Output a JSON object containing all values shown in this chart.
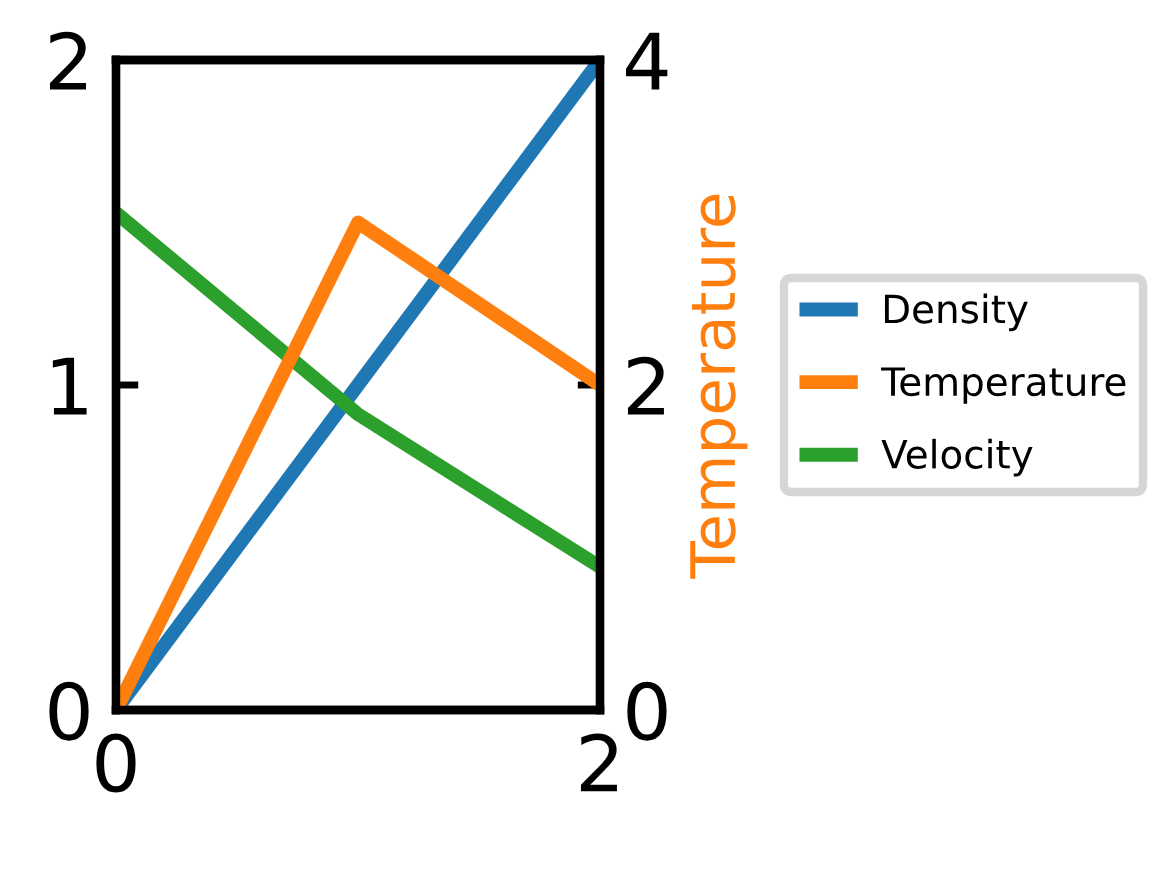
{
  "chart_data": {
    "type": "line",
    "x": [
      0,
      1,
      2
    ],
    "xlim": [
      0,
      2
    ],
    "xticks": [
      0,
      2
    ],
    "ylim": [
      0,
      2
    ],
    "yticks": [
      0,
      1,
      2
    ],
    "y2lim": [
      0,
      4
    ],
    "y2ticks": [
      0,
      2,
      4
    ],
    "y2label": "Temperature",
    "series": [
      {
        "name": "Density",
        "color": "#1f77b4",
        "values": [
          0,
          1,
          2
        ]
      },
      {
        "name": "Temperature",
        "color": "#ff7f0e",
        "values": [
          0,
          3,
          2
        ],
        "axis": "y2"
      },
      {
        "name": "Velocity",
        "color": "#2ca02c",
        "values": [
          1.53,
          0.91,
          0.44
        ]
      }
    ],
    "legend": "right",
    "grid": false
  }
}
